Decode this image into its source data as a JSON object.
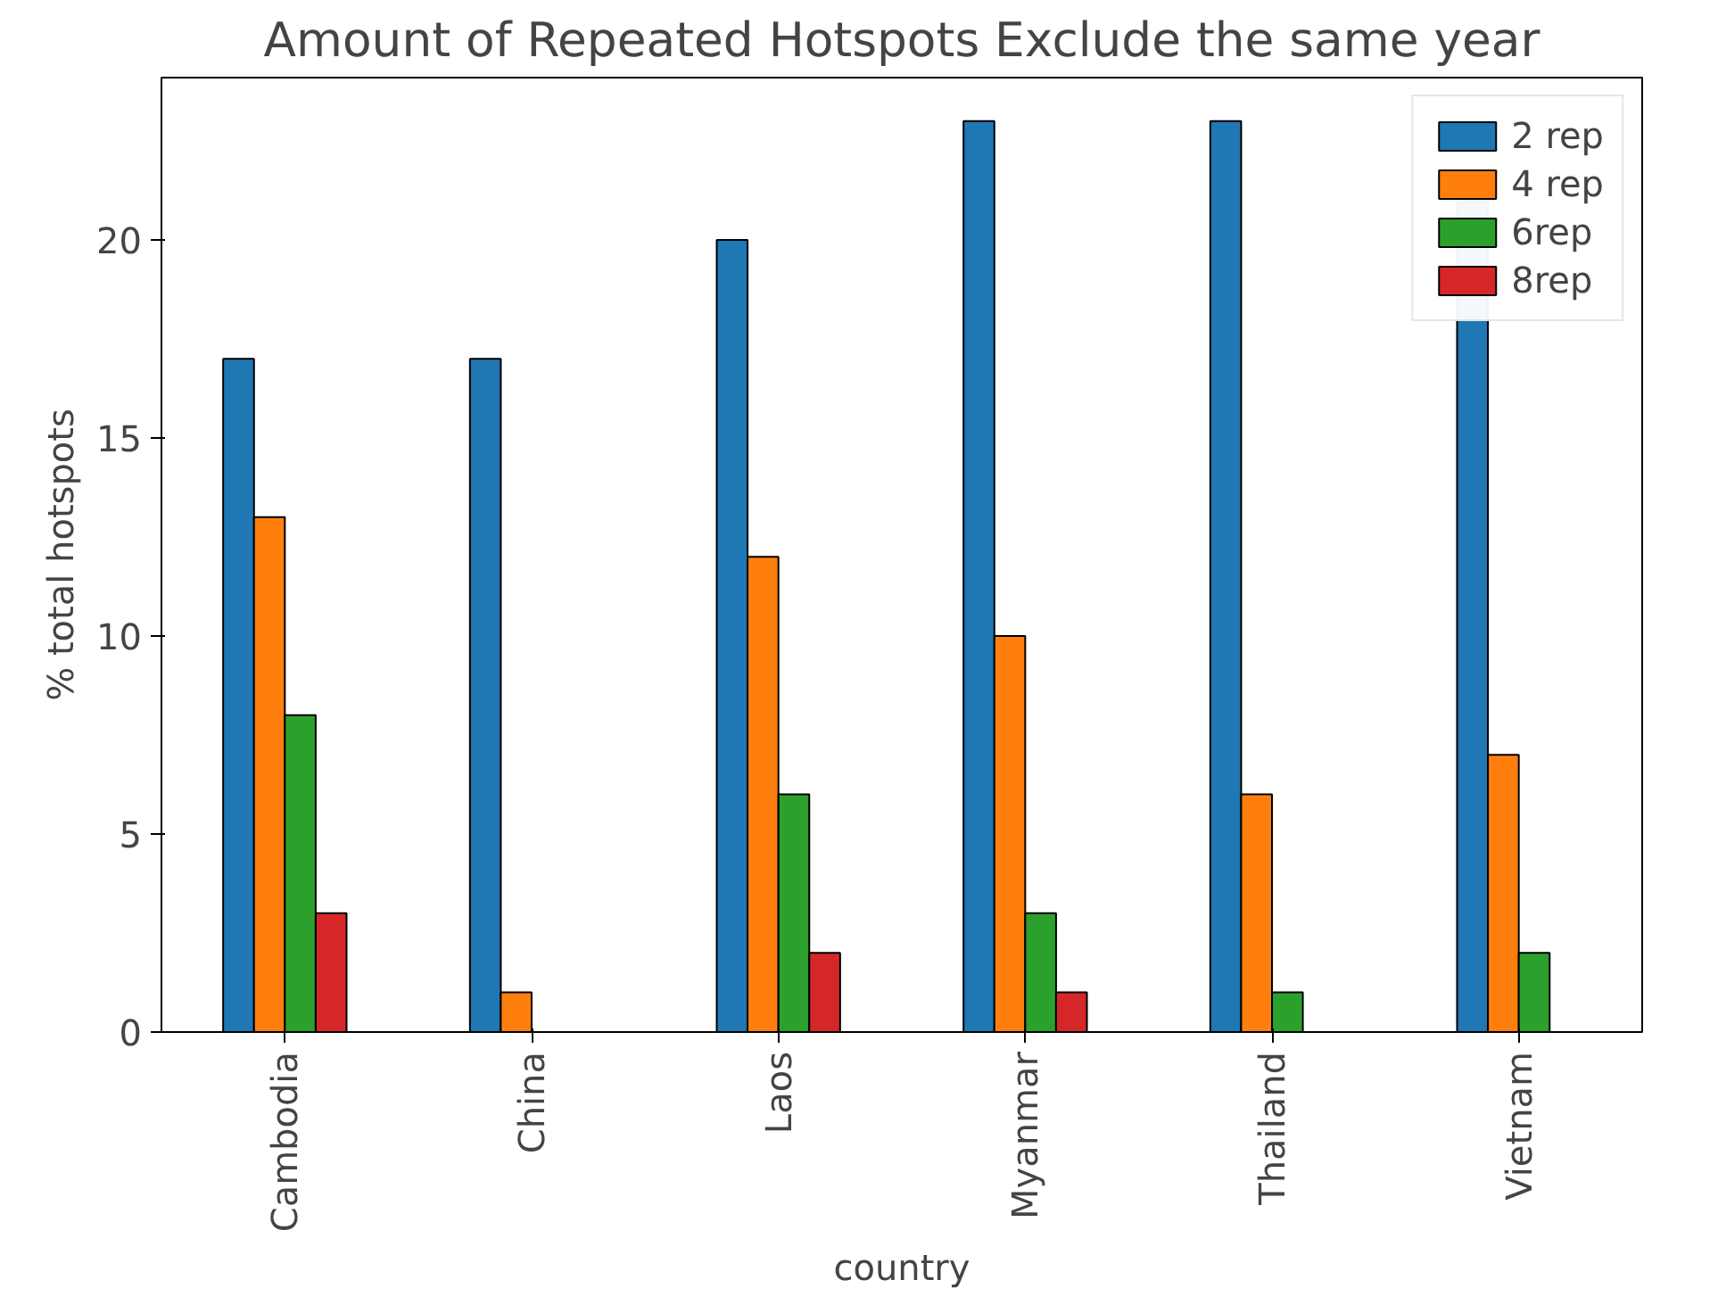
{
  "chart_data": {
    "type": "bar",
    "title": "Amount of Repeated Hotspots Exclude the same year",
    "xlabel": "country",
    "ylabel": "% total hotspots",
    "categories": [
      "Cambodia",
      "China",
      "Laos",
      "Myanmar",
      "Thailand",
      "Vietnam"
    ],
    "series": [
      {
        "name": "2 rep",
        "color": "#1f77b4",
        "values": [
          17,
          17,
          20,
          23,
          23,
          21
        ]
      },
      {
        "name": "4 rep",
        "color": "#ff7f0e",
        "values": [
          13,
          1,
          12,
          10,
          6,
          7
        ]
      },
      {
        "name": "6rep",
        "color": "#2ca02c",
        "values": [
          8,
          null,
          6,
          3,
          1,
          2
        ]
      },
      {
        "name": "8rep",
        "color": "#d62728",
        "values": [
          3,
          null,
          2,
          1,
          null,
          null
        ]
      }
    ],
    "ylim": [
      0,
      24.1
    ],
    "yticks": [
      0,
      5,
      10,
      15,
      20
    ],
    "grid": false,
    "legend": "top right"
  }
}
